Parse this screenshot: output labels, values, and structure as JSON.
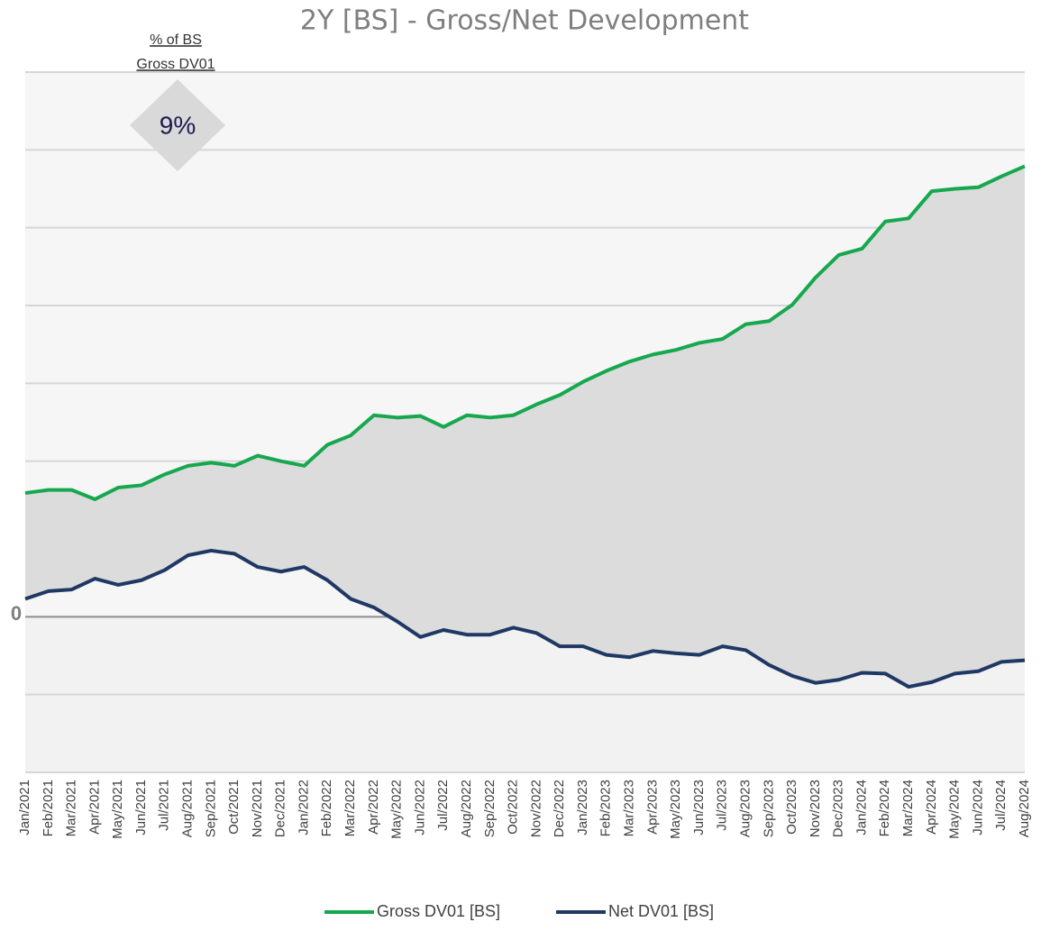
{
  "chart_data": {
    "type": "line",
    "title": "2Y [BS] - Gross/Net  Development",
    "badge": {
      "label_lines": [
        "% of BS",
        "Gross DV01"
      ],
      "text": "9%"
    },
    "categories": [
      "Jan/2021",
      "Feb/2021",
      "Mar/2021",
      "Apr/2021",
      "May/2021",
      "Jun/2021",
      "Jul/2021",
      "Aug/2021",
      "Sep/2021",
      "Oct/2021",
      "Nov/2021",
      "Dec/2021",
      "Jan/2022",
      "Feb/2022",
      "Mar/2022",
      "Apr/2022",
      "May/2022",
      "Jun/2022",
      "Jul/2022",
      "Aug/2022",
      "Sep/2022",
      "Oct/2022",
      "Nov/2022",
      "Dec/2022",
      "Jan/2023",
      "Feb/2023",
      "Mar/2023",
      "Apr/2023",
      "May/2023",
      "Jun/2023",
      "Jul/2023",
      "Aug/2023",
      "Sep/2023",
      "Oct/2023",
      "Nov/2023",
      "Dec/2023",
      "Jan/2024",
      "Feb/2024",
      "Mar/2024",
      "Apr/2024",
      "May/2024",
      "Jun/2024",
      "Jul/2024",
      "Aug/2024"
    ],
    "series": [
      {
        "name": "Gross DV01  [BS]",
        "color": "#17a84f",
        "values": [
          1.59,
          1.63,
          1.63,
          1.51,
          1.66,
          1.69,
          1.83,
          1.94,
          1.98,
          1.94,
          2.07,
          2.0,
          1.94,
          2.21,
          2.33,
          2.59,
          2.56,
          2.58,
          2.44,
          2.59,
          2.56,
          2.59,
          2.73,
          2.85,
          3.02,
          3.16,
          3.28,
          3.37,
          3.43,
          3.52,
          3.57,
          3.76,
          3.8,
          4.01,
          4.36,
          4.65,
          4.73,
          5.08,
          5.12,
          5.47,
          5.5,
          5.52,
          5.66,
          5.79
        ]
      },
      {
        "name": "Net DV01 [BS]",
        "color": "#1f3864",
        "values": [
          0.23,
          0.33,
          0.35,
          0.49,
          0.41,
          0.47,
          0.6,
          0.79,
          0.85,
          0.81,
          0.64,
          0.58,
          0.64,
          0.47,
          0.23,
          0.12,
          -0.06,
          -0.26,
          -0.17,
          -0.23,
          -0.23,
          -0.14,
          -0.21,
          -0.38,
          -0.38,
          -0.49,
          -0.52,
          -0.44,
          -0.47,
          -0.49,
          -0.38,
          -0.43,
          -0.62,
          -0.76,
          -0.85,
          -0.81,
          -0.72,
          -0.73,
          -0.9,
          -0.84,
          -0.73,
          -0.7,
          -0.58,
          -0.56
        ]
      }
    ],
    "ylim": [
      -2,
      7
    ],
    "yticks": [
      0
    ],
    "ygrid": [
      -2,
      -1,
      1,
      2,
      3,
      4,
      5,
      6,
      7
    ],
    "grid": true,
    "legend": "bottom"
  }
}
